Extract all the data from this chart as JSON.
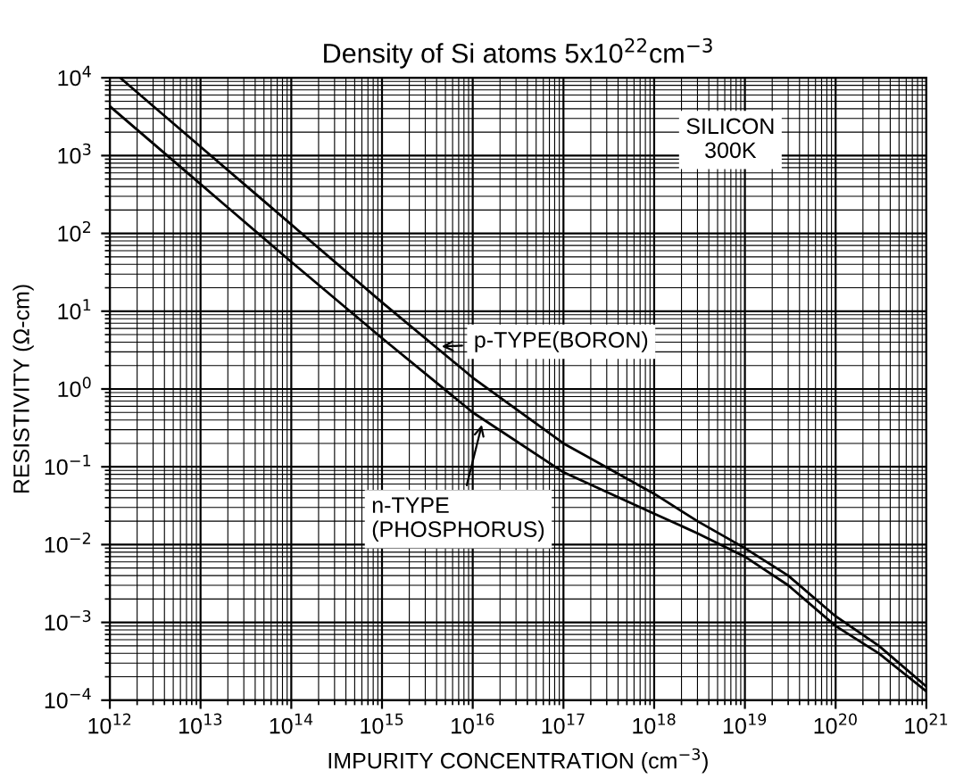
{
  "chart_data": {
    "type": "line",
    "title": "Density of Si atoms 5x10$^{22}$cm$^{−3}$",
    "xlabel": "IMPURITY CONCENTRATION (cm$^{−3}$)",
    "ylabel": "RESISTIVITY (Ω-cm)",
    "series": [
      {
        "color": "#000000",
        "x": [
          1300000000000.0,
          10000000000000.0,
          100000000000000.0,
          1000000000000000.0,
          1e+16,
          1e+17,
          1e+18,
          3e+18,
          1e+19,
          3e+19,
          1e+20,
          3e+20,
          1e+21
        ],
        "values": [
          10000,
          1300,
          130,
          13,
          1.4,
          0.2,
          0.045,
          0.02,
          0.009,
          0.004,
          0.0012,
          0.0005,
          0.00015
        ]
      },
      {
        "color": "#000000",
        "x": [
          1000000000000.0,
          10000000000000.0,
          100000000000000.0,
          1000000000000000.0,
          1e+16,
          1e+17,
          1e+18,
          3e+18,
          1e+19,
          3e+19,
          1e+20,
          3e+20,
          1e+21
        ],
        "values": [
          4300,
          430,
          43,
          4.5,
          0.5,
          0.085,
          0.025,
          0.014,
          0.007,
          0.003,
          0.0009,
          0.0004,
          0.00013
        ]
      }
    ],
    "annotations": [
      "SILICON\n300K",
      {
        "text": "p-TYPE(BORON)",
        "x": 4000000000000000.0,
        "y": 3.5
      },
      {
        "text": "n-TYPE\n(PHOSPHORUS)",
        "x": 1.3e+16,
        "y": 0.4
      }
    ],
    "log": "xy",
    "grid": true,
    "marker": "none",
    "line_style": "solid",
    "xlim": [
      1000000000000.0,
      1e+21
    ],
    "ylim": [
      0.0001,
      10000
    ],
    "xticks": [
      {
        "value": 1000000000000.0,
        "label": "10$^{12}$"
      },
      {
        "value": 10000000000000.0,
        "label": "10$^{13}$"
      },
      {
        "value": 100000000000000.0,
        "label": "10$^{14}$"
      },
      {
        "value": 1000000000000000.0,
        "label": "10$^{15}$"
      },
      {
        "value": 1e+16,
        "label": "10$^{16}$"
      },
      {
        "value": 1e+17,
        "label": "10$^{17}$"
      },
      {
        "value": 1e+18,
        "label": "10$^{18}$"
      },
      {
        "value": 1e+19,
        "label": "10$^{19}$"
      },
      {
        "value": 1e+20,
        "label": "10$^{20}$"
      },
      {
        "value": 1e+21,
        "label": "10$^{21}$"
      }
    ],
    "yticks": [
      {
        "value": 0.0001,
        "label": "10$^{−4}$"
      },
      {
        "value": 0.001,
        "label": "10$^{−3}$"
      },
      {
        "value": 0.01,
        "label": "10$^{−2}$"
      },
      {
        "value": 0.1,
        "label": "10$^{−1}$"
      },
      {
        "value": 1,
        "label": "10$^{0}$"
      },
      {
        "value": 10,
        "label": "10$^{1}$"
      },
      {
        "value": 100,
        "label": "10$^{2}$"
      },
      {
        "value": 1000,
        "label": "10$^{3}$"
      },
      {
        "value": 10000,
        "label": "10$^{4}$"
      }
    ]
  }
}
